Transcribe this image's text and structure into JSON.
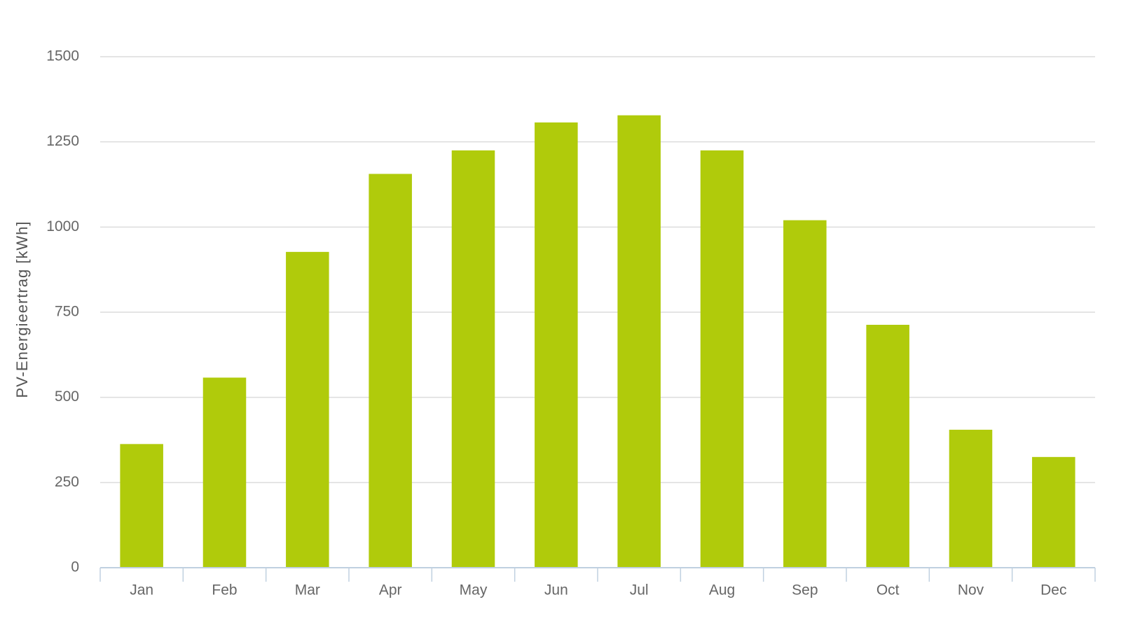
{
  "chart_data": {
    "type": "bar",
    "y_label": "PV-Energieertrag [kWh]",
    "categories": [
      "Jan",
      "Feb",
      "Mar",
      "Apr",
      "May",
      "Jun",
      "Jul",
      "Aug",
      "Sep",
      "Oct",
      "Nov",
      "Dec"
    ],
    "values": [
      363,
      558,
      927,
      1156,
      1225,
      1307,
      1328,
      1225,
      1020,
      713,
      405,
      325
    ],
    "color": "#b0cb0b",
    "ylim": [
      0,
      1500
    ],
    "yticks": [
      0,
      250,
      500,
      750,
      1000,
      1250,
      1500
    ],
    "grid": true
  }
}
